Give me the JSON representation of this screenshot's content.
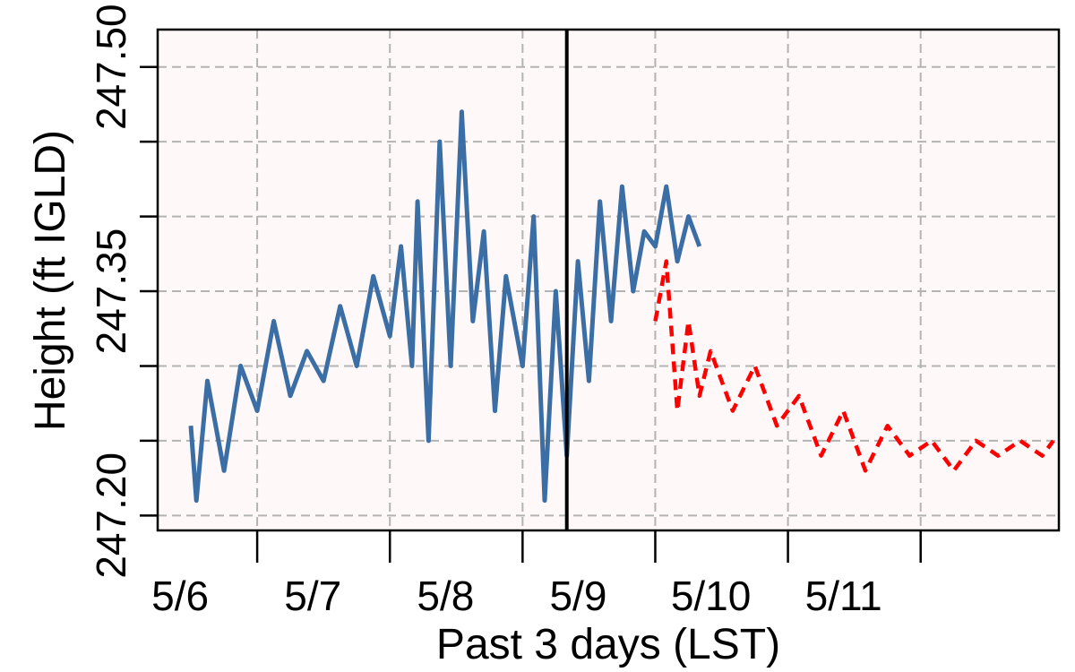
{
  "chart_data": {
    "type": "line",
    "xlabel": "Past 3 days (LST)",
    "ylabel": "Height (ft IGLD)",
    "x_tick_labels": [
      "5/6",
      "5/7",
      "5/8",
      "5/9",
      "5/10",
      "5/11"
    ],
    "x_ticks": [
      "2022-05-06",
      "2022-05-07",
      "2022-05-08",
      "2022-05-09",
      "2022-05-10",
      "2022-05-11"
    ],
    "xlim": [
      "2022-05-05 06:00",
      "2022-05-12 01:00"
    ],
    "y_tick_labels": [
      "247.20",
      "247.35",
      "247.50"
    ],
    "y_ticks": [
      247.2,
      247.35,
      247.5
    ],
    "y_gridlines": [
      247.2,
      247.25,
      247.3,
      247.35,
      247.4,
      247.45,
      247.5
    ],
    "ylim": [
      247.19,
      247.525
    ],
    "grid": true,
    "background": "#fff8f8",
    "now_marker": "2022-05-08 08:00",
    "series": [
      {
        "kind": "observed",
        "color": "#3a6ea5",
        "style": "solid",
        "points": [
          [
            "2022-05-05 12:00",
            247.26
          ],
          [
            "2022-05-05 13:00",
            247.21
          ],
          [
            "2022-05-05 15:00",
            247.29
          ],
          [
            "2022-05-05 18:00",
            247.23
          ],
          [
            "2022-05-05 21:00",
            247.3
          ],
          [
            "2022-05-06 00:00",
            247.27
          ],
          [
            "2022-05-06 03:00",
            247.33
          ],
          [
            "2022-05-06 06:00",
            247.28
          ],
          [
            "2022-05-06 09:00",
            247.31
          ],
          [
            "2022-05-06 12:00",
            247.29
          ],
          [
            "2022-05-06 15:00",
            247.34
          ],
          [
            "2022-05-06 18:00",
            247.3
          ],
          [
            "2022-05-06 21:00",
            247.36
          ],
          [
            "2022-05-07 00:00",
            247.32
          ],
          [
            "2022-05-07 02:00",
            247.38
          ],
          [
            "2022-05-07 04:00",
            247.3
          ],
          [
            "2022-05-07 05:00",
            247.41
          ],
          [
            "2022-05-07 07:00",
            247.25
          ],
          [
            "2022-05-07 09:00",
            247.45
          ],
          [
            "2022-05-07 11:00",
            247.3
          ],
          [
            "2022-05-07 13:00",
            247.47
          ],
          [
            "2022-05-07 15:00",
            247.33
          ],
          [
            "2022-05-07 17:00",
            247.39
          ],
          [
            "2022-05-07 19:00",
            247.27
          ],
          [
            "2022-05-07 21:00",
            247.36
          ],
          [
            "2022-05-08 00:00",
            247.3
          ],
          [
            "2022-05-08 02:00",
            247.4
          ],
          [
            "2022-05-08 04:00",
            247.21
          ],
          [
            "2022-05-08 06:00",
            247.35
          ],
          [
            "2022-05-08 08:00",
            247.24
          ],
          [
            "2022-05-08 10:00",
            247.37
          ],
          [
            "2022-05-08 12:00",
            247.29
          ],
          [
            "2022-05-08 14:00",
            247.41
          ],
          [
            "2022-05-08 16:00",
            247.33
          ],
          [
            "2022-05-08 18:00",
            247.42
          ],
          [
            "2022-05-08 20:00",
            247.35
          ],
          [
            "2022-05-08 22:00",
            247.39
          ],
          [
            "2022-05-09 00:00",
            247.38
          ],
          [
            "2022-05-09 02:00",
            247.42
          ],
          [
            "2022-05-09 04:00",
            247.37
          ],
          [
            "2022-05-09 06:00",
            247.4
          ],
          [
            "2022-05-09 08:00",
            247.38
          ]
        ]
      },
      {
        "kind": "forecast",
        "color": "#ff0000",
        "style": "dashed",
        "points": [
          [
            "2022-05-09 00:00",
            247.33
          ],
          [
            "2022-05-09 02:00",
            247.37
          ],
          [
            "2022-05-09 04:00",
            247.27
          ],
          [
            "2022-05-09 06:00",
            247.33
          ],
          [
            "2022-05-09 08:00",
            247.28
          ],
          [
            "2022-05-09 10:00",
            247.31
          ],
          [
            "2022-05-09 14:00",
            247.27
          ],
          [
            "2022-05-09 18:00",
            247.3
          ],
          [
            "2022-05-09 22:00",
            247.26
          ],
          [
            "2022-05-10 02:00",
            247.28
          ],
          [
            "2022-05-10 06:00",
            247.24
          ],
          [
            "2022-05-10 10:00",
            247.27
          ],
          [
            "2022-05-10 14:00",
            247.23
          ],
          [
            "2022-05-10 18:00",
            247.26
          ],
          [
            "2022-05-10 22:00",
            247.24
          ],
          [
            "2022-05-11 02:00",
            247.25
          ],
          [
            "2022-05-11 06:00",
            247.23
          ],
          [
            "2022-05-11 10:00",
            247.25
          ],
          [
            "2022-05-11 14:00",
            247.24
          ],
          [
            "2022-05-11 18:00",
            247.25
          ],
          [
            "2022-05-11 22:00",
            247.24
          ],
          [
            "2022-05-12 00:00",
            247.25
          ]
        ]
      }
    ]
  }
}
